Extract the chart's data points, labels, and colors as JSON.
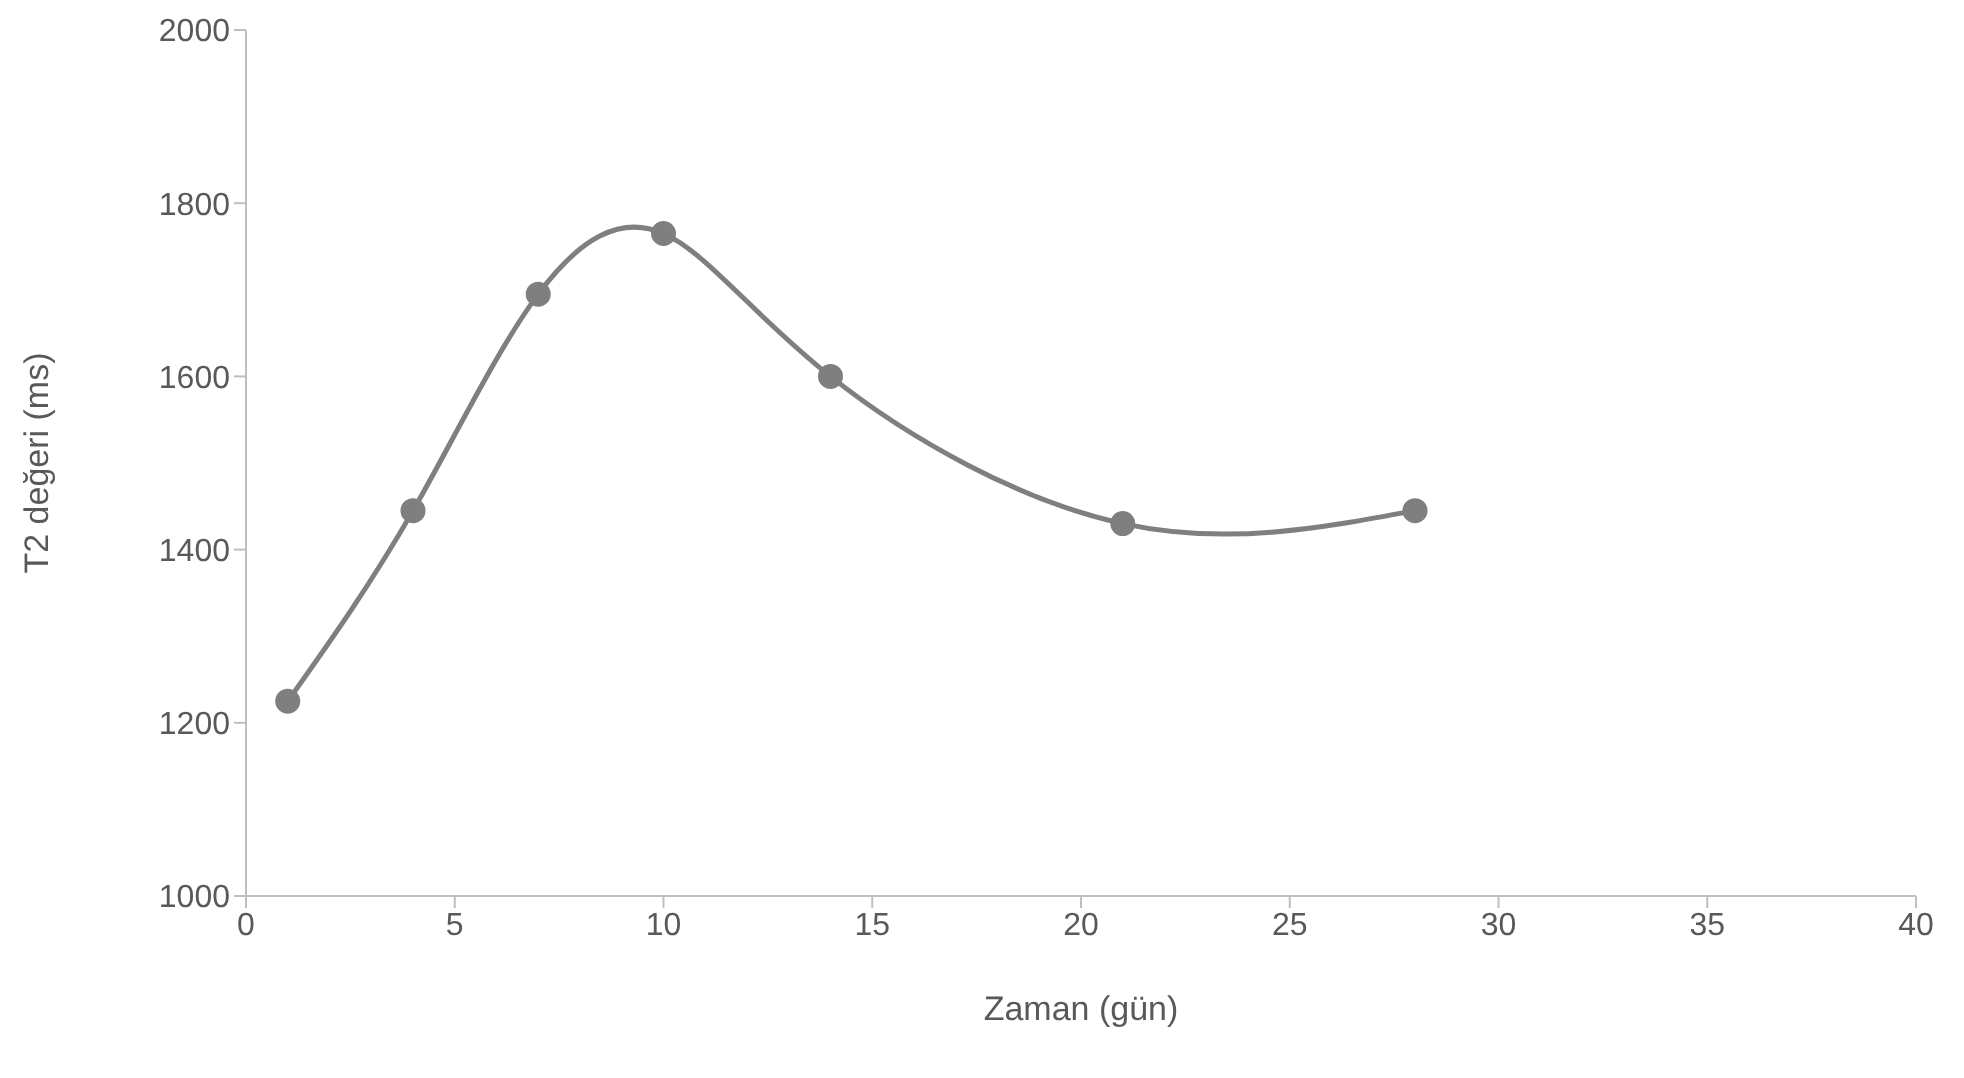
{
  "chart_data": {
    "type": "line",
    "xlabel": "Zaman (gün)",
    "ylabel": "T2  değeri (ms)",
    "x": [
      1,
      4,
      7,
      10,
      14,
      21,
      28
    ],
    "series": [
      {
        "color": "#7f7f7f",
        "values": [
          1225,
          1445,
          1695,
          1765,
          1600,
          1430,
          1445
        ]
      }
    ],
    "xlim": [
      0,
      40
    ],
    "xticks": [
      0,
      5,
      10,
      15,
      20,
      25,
      30,
      35,
      40
    ],
    "ylim": [
      1000,
      2000
    ],
    "yticks": [
      1000,
      1200,
      1400,
      1600,
      1800,
      2000
    ],
    "grid": false,
    "legend": false,
    "marker": "circle",
    "line_style": "solid"
  }
}
